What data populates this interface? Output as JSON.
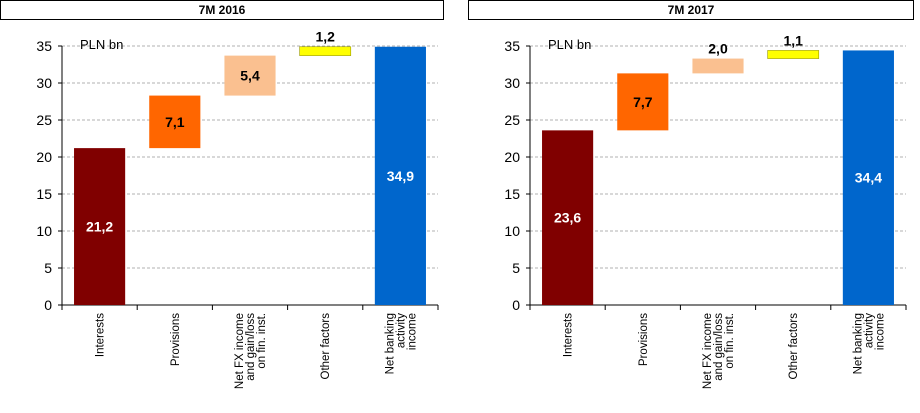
{
  "colors": {
    "interests": "#800000",
    "provisions": "#ff6600",
    "net_fx": "#fac090",
    "other_factors": "#ffff00",
    "net_banking": "#0066cc",
    "gridline": "#999999"
  },
  "chart_data": [
    {
      "type": "bar",
      "subtype": "waterfall",
      "title": "7M 2016",
      "unit_label": "PLN bn",
      "ylim": [
        0,
        35
      ],
      "yticks": [
        0,
        5,
        10,
        15,
        20,
        25,
        30,
        35
      ],
      "grid": true,
      "categories": [
        [
          "Interests"
        ],
        [
          "Provisions"
        ],
        [
          "Net FX income",
          "and gain/loss",
          "on fin. inst."
        ],
        [
          "Other factors"
        ],
        [
          "Net banking",
          "activity",
          "income"
        ]
      ],
      "values": [
        21.2,
        7.1,
        5.4,
        1.2,
        34.9
      ],
      "value_labels": [
        "21,2",
        "7,1",
        "5,4",
        "1,2",
        "34,9"
      ]
    },
    {
      "type": "bar",
      "subtype": "waterfall",
      "title": "7M 2017",
      "unit_label": "PLN bn",
      "ylim": [
        0,
        35
      ],
      "yticks": [
        0,
        5,
        10,
        15,
        20,
        25,
        30,
        35
      ],
      "grid": true,
      "categories": [
        [
          "Interests"
        ],
        [
          "Provisions"
        ],
        [
          "Net FX income",
          "and gain/loss",
          "on fin. inst."
        ],
        [
          "Other factors"
        ],
        [
          "Net banking",
          "activity",
          "income"
        ]
      ],
      "values": [
        23.6,
        7.7,
        2.0,
        1.1,
        34.4
      ],
      "value_labels": [
        "23,6",
        "7,7",
        "2,0",
        "1,1",
        "34,4"
      ]
    }
  ]
}
